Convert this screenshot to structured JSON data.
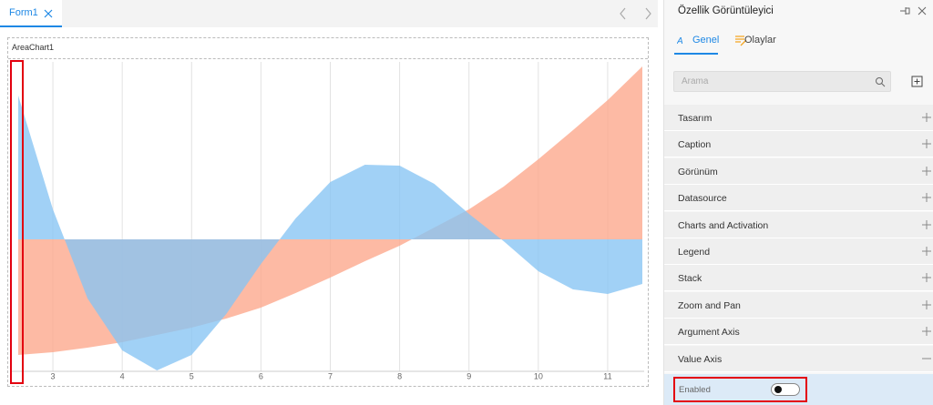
{
  "tab": {
    "label": "Form1"
  },
  "chart_data": {
    "type": "area",
    "title": "AreaChart1",
    "x": [
      2.5,
      3,
      3.5,
      4,
      4.5,
      5,
      5.5,
      6,
      6.5,
      7,
      7.5,
      8,
      8.5,
      9,
      9.5,
      10,
      10.5,
      11,
      11.5
    ],
    "series": [
      {
        "color": "#fca78b",
        "values": [
          -2.54,
          -2.48,
          -2.38,
          -2.26,
          -2.1,
          -1.94,
          -1.74,
          -1.5,
          -1.18,
          -0.84,
          -0.48,
          -0.14,
          0.26,
          0.66,
          1.16,
          1.76,
          2.4,
          3.06,
          3.8
        ]
      },
      {
        "color": "#86c4f4",
        "values": [
          3.16,
          0.66,
          -1.3,
          -2.44,
          -2.88,
          -2.54,
          -1.64,
          -0.54,
          0.46,
          1.26,
          1.64,
          1.62,
          1.22,
          0.56,
          -0.04,
          -0.7,
          -1.1,
          -1.2,
          -0.98
        ]
      }
    ],
    "xlim": [
      2.5,
      11.5
    ],
    "xticks": [
      3,
      4,
      5,
      6,
      7,
      8,
      9,
      10,
      11
    ],
    "ylim": [
      -2.9,
      3.86
    ],
    "grid": true
  },
  "panel": {
    "title": "Özellik Görüntüleyici",
    "tabs": [
      "Genel",
      "Olaylar"
    ],
    "search_placeholder": "Arama",
    "sections": [
      "Tasarım",
      "Caption",
      "Görünüm",
      "Datasource",
      "Charts and Activation",
      "Legend",
      "Stack",
      "Zoom and Pan",
      "Argument Axis",
      "Value Axis"
    ],
    "field_label": "Enabled"
  }
}
